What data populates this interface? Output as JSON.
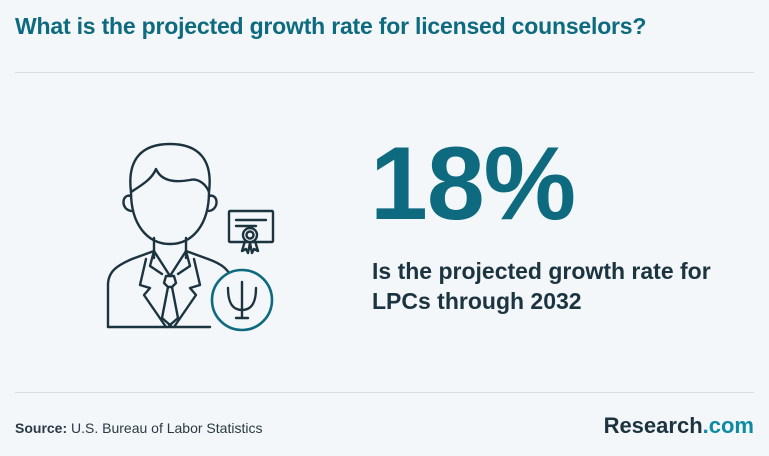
{
  "header": {
    "title": "What is the projected growth rate for licensed counselors?"
  },
  "stat": {
    "value": "18%",
    "description": "Is the projected growth rate for LPCs through 2032"
  },
  "footer": {
    "source_label": "Source:",
    "source_text": "U.S. Bureau of Labor Statistics",
    "brand_name": "Research",
    "brand_suffix": ".com"
  },
  "icons": {
    "person": "counselor-person-icon",
    "certificate": "certificate-icon",
    "psi": "psi-symbol-icon"
  },
  "colors": {
    "accent": "#0e6a7e",
    "dark": "#1c3340",
    "background": "#f3f7f9"
  }
}
